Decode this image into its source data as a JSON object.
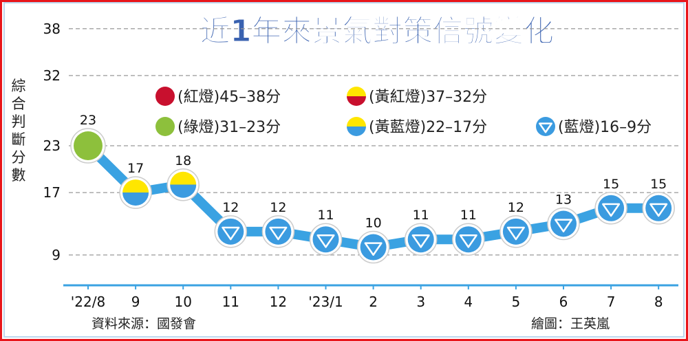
{
  "chart_data": {
    "type": "line",
    "title": "近1年來景氣對策信號變化",
    "ylabel": "綜合判斷分數",
    "categories": [
      "'22/8",
      "9",
      "10",
      "11",
      "12",
      "'23/1",
      "2",
      "3",
      "4",
      "5",
      "6",
      "7",
      "8"
    ],
    "values": [
      23,
      17,
      18,
      12,
      12,
      11,
      10,
      11,
      11,
      12,
      13,
      15,
      15
    ],
    "markers": [
      "green",
      "yellow-blue",
      "yellow-blue",
      "blue",
      "blue",
      "blue",
      "blue",
      "blue",
      "blue",
      "blue",
      "blue",
      "blue",
      "blue"
    ],
    "yticks": [
      9,
      17,
      23,
      32,
      38
    ],
    "ylim": [
      5.3,
      40
    ],
    "grid": true,
    "legend": [
      {
        "label": "(紅燈)45–38分",
        "marker": "red"
      },
      {
        "label": "(黃紅燈)37–32分",
        "marker": "yellow-red"
      },
      {
        "label": "(綠燈)31–23分",
        "marker": "green"
      },
      {
        "label": "(黃藍燈)22–17分",
        "marker": "yellow-blue"
      },
      {
        "label": "(藍燈)16–9分",
        "marker": "blue"
      }
    ],
    "legend_position": "top",
    "colors": {
      "red": "#c8102e",
      "yellow": "#ffe600",
      "green": "#8dc03c",
      "blue": "#3b9be0",
      "line": "#3aa2e2",
      "title": "#3a62b0"
    }
  },
  "footer": {
    "source": "資料來源：國發會",
    "credit": "繪圖：王英嵐"
  }
}
